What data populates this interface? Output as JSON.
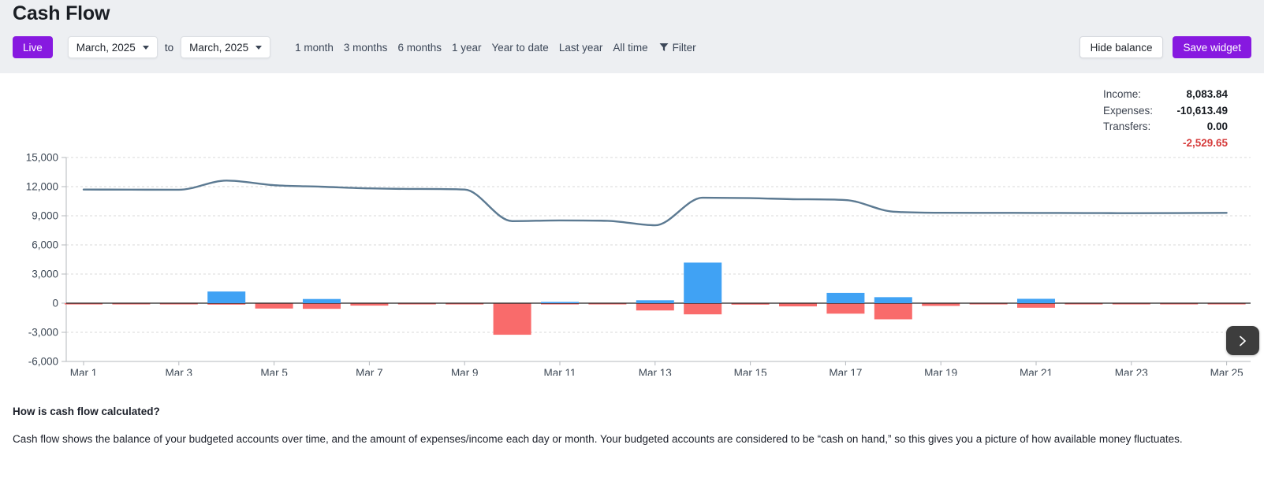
{
  "header": {
    "title": "Cash Flow"
  },
  "toolbar": {
    "live_label": "Live",
    "from_month": "March, 2025",
    "to_connector": "to",
    "to_month": "March, 2025",
    "ranges": [
      "1 month",
      "3 months",
      "6 months",
      "1 year",
      "Year to date",
      "Last year",
      "All time"
    ],
    "filter_label": "Filter",
    "hide_balance_label": "Hide balance",
    "save_widget_label": "Save widget"
  },
  "summary": {
    "rows": [
      {
        "label": "Income:",
        "value": "8,083.84"
      },
      {
        "label": "Expenses:",
        "value": "-10,613.49"
      },
      {
        "label": "Transfers:",
        "value": "0.00"
      }
    ],
    "net_value": "-2,529.65"
  },
  "chart_data": {
    "type": "combo-line-bar",
    "x": [
      "Mar 1",
      "Mar 2",
      "Mar 3",
      "Mar 4",
      "Mar 5",
      "Mar 6",
      "Mar 7",
      "Mar 8",
      "Mar 9",
      "Mar 10",
      "Mar 11",
      "Mar 12",
      "Mar 13",
      "Mar 14",
      "Mar 15",
      "Mar 16",
      "Mar 17",
      "Mar 18",
      "Mar 19",
      "Mar 20",
      "Mar 21",
      "Mar 22",
      "Mar 23",
      "Mar 24",
      "Mar 25"
    ],
    "x_tick_labels": [
      "Mar 1",
      "Mar 3",
      "Mar 5",
      "Mar 7",
      "Mar 9",
      "Mar 11",
      "Mar 13",
      "Mar 15",
      "Mar 17",
      "Mar 19",
      "Mar 21",
      "Mar 23",
      "Mar 25"
    ],
    "series": [
      {
        "name": "balance",
        "type": "line",
        "values": [
          11700,
          11690,
          11680,
          12620,
          12150,
          11990,
          11820,
          11760,
          11700,
          8450,
          8520,
          8480,
          8020,
          10860,
          10820,
          10700,
          10620,
          9420,
          9310,
          9300,
          9290,
          9280,
          9270,
          9280,
          9300
        ]
      },
      {
        "name": "income",
        "type": "bar",
        "values": [
          0,
          0,
          0,
          1200,
          0,
          430,
          0,
          0,
          0,
          0,
          130,
          0,
          300,
          4180,
          0,
          0,
          1060,
          620,
          0,
          0,
          450,
          0,
          0,
          0,
          0
        ]
      },
      {
        "name": "expenses",
        "type": "bar",
        "values": [
          -40,
          -40,
          -60,
          -150,
          -550,
          -580,
          -250,
          -30,
          -30,
          -3250,
          -60,
          -60,
          -750,
          -1150,
          -150,
          -330,
          -1080,
          -1660,
          -280,
          -30,
          -470,
          -30,
          -120,
          -40,
          -40
        ]
      }
    ],
    "ylim": [
      -6000,
      15000
    ],
    "y_ticks": [
      15000,
      12000,
      9000,
      6000,
      3000,
      0,
      -3000,
      -6000
    ],
    "grid": "dashed-horizontal",
    "legend_position": "top-right",
    "colors": {
      "balance_line": "#5c7a92",
      "income_bar": "#40a2f4",
      "expense_bar": "#f96b6b",
      "zero_line": "#202020",
      "grid": "#d8d8d8",
      "axis_line": "#b5b9be",
      "axis_text": "#3e4956"
    }
  },
  "theme": {
    "accent_purple": "#8719e0",
    "net_negative_red": "#d63b3b",
    "header_background": "#edeff2"
  },
  "pager": {
    "next_label": "next"
  },
  "footer": {
    "heading": "How is cash flow calculated?",
    "body": "Cash flow shows the balance of your budgeted accounts over time, and the amount of expenses/income each day or month. Your budgeted accounts are considered to be “cash on hand,” so this gives you a picture of how available money fluctuates."
  }
}
